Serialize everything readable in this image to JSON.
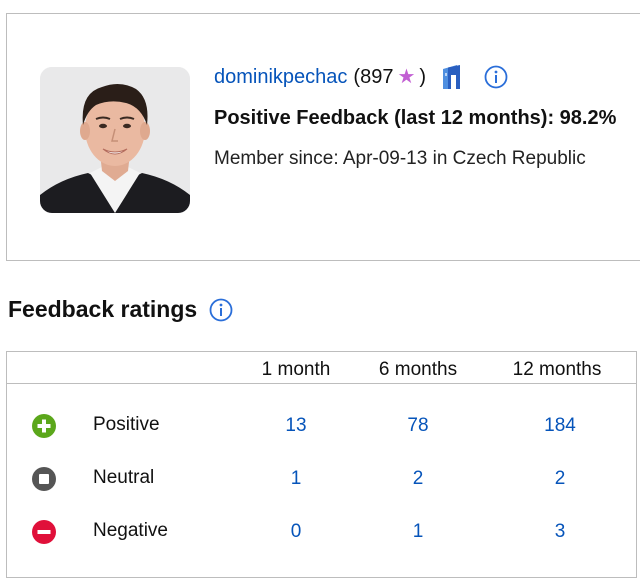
{
  "profile": {
    "username": "dominikpechac",
    "score_open": "(897",
    "star_glyph": "★",
    "score_close": ")",
    "positive_feedback": "Positive Feedback (last 12 months): 98.2%",
    "member_since": "Member since: Apr-09-13 in Czech Republic",
    "icons": [
      "store-icon",
      "info-icon"
    ],
    "colors": {
      "link": "#0654ba",
      "star": "#c25fd3"
    }
  },
  "ratings": {
    "title": "Feedback ratings",
    "columns": [
      "1 month",
      "6 months",
      "12 months"
    ],
    "rows": [
      {
        "label": "Positive",
        "icon": "plus-circle-icon",
        "color": "#5ba71b",
        "values": [
          "13",
          "78",
          "184"
        ]
      },
      {
        "label": "Neutral",
        "icon": "square-circle-icon",
        "color": "#555555",
        "values": [
          "1",
          "2",
          "2"
        ]
      },
      {
        "label": "Negative",
        "icon": "minus-circle-icon",
        "color": "#e0103a",
        "values": [
          "0",
          "1",
          "3"
        ]
      }
    ]
  }
}
